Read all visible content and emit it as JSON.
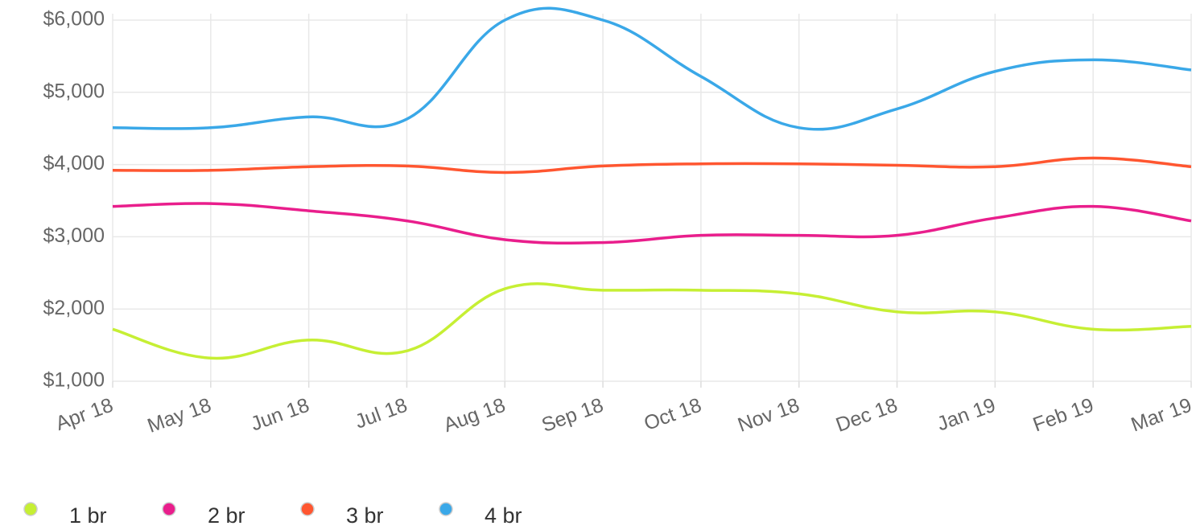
{
  "chart_data": {
    "type": "line",
    "categories": [
      "Apr 18",
      "May 18",
      "Jun 18",
      "Jul 18",
      "Aug 18",
      "Sep 18",
      "Oct 18",
      "Nov 18",
      "Dec 18",
      "Jan 19",
      "Feb 19",
      "Mar 19"
    ],
    "series": [
      {
        "name": "1 br",
        "color": "#c6ef34",
        "values": [
          1720,
          1320,
          1570,
          1420,
          2280,
          2260,
          2260,
          2210,
          1960,
          1960,
          1720,
          1760
        ]
      },
      {
        "name": "2 br",
        "color": "#e91e8c",
        "values": [
          3420,
          3460,
          3360,
          3220,
          2960,
          2920,
          3020,
          3020,
          3020,
          3260,
          3420,
          3220
        ]
      },
      {
        "name": "3 br",
        "color": "#ff5630",
        "values": [
          3920,
          3920,
          3970,
          3980,
          3890,
          3980,
          4010,
          4010,
          3990,
          3970,
          4090,
          3970
        ]
      },
      {
        "name": "4 br",
        "color": "#3aa8e8",
        "values": [
          4510,
          4510,
          4660,
          4630,
          6000,
          6000,
          5220,
          4510,
          4770,
          5290,
          5450,
          5310
        ]
      }
    ],
    "ylim": [
      1000,
      6000
    ],
    "yticks": [
      {
        "value": 1000,
        "label": "$1,000"
      },
      {
        "value": 2000,
        "label": "$2,000"
      },
      {
        "value": 3000,
        "label": "$3,000"
      },
      {
        "value": 4000,
        "label": "$4,000"
      },
      {
        "value": 5000,
        "label": "$5,000"
      },
      {
        "value": 6000,
        "label": "$6,000"
      }
    ],
    "grid": true
  }
}
